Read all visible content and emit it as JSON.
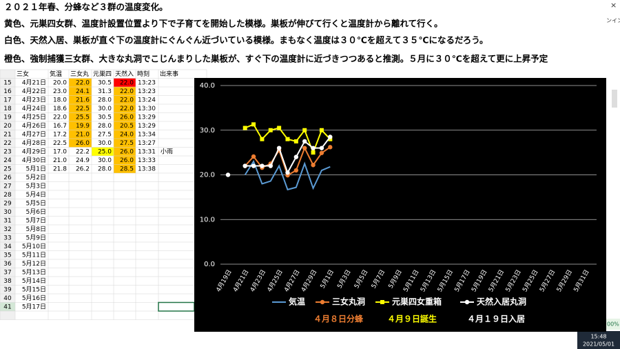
{
  "header": {
    "lines": [
      "２０２１年春、分蜂など３群の温度変化。",
      "黄色、元巣四女群、温度計設置位置より下で子育てを開始した模様。巣板が伸びて行くと温度計から離れて行く。",
      "白色、天然入居、巣板が直ぐ下の温度計にぐんぐん近づいている模様。まもなく温度は３０℃を超えて３５℃になるだろう。",
      "橙色、強制捕獲三女群、大きな丸洞でこじんまりした巣板が、すぐ下の温度計に近づきつつあると推測。５月に３０℃を超えて更に上昇予定"
    ]
  },
  "sheet": {
    "columns": [
      "三女",
      "気温",
      "三女丸",
      "元巣四",
      "天然入",
      "時刻",
      "出来事"
    ],
    "rows": [
      [
        "15",
        "4月21日",
        "20.0",
        "22.0",
        "30.5",
        "22.0",
        "13:23"
      ],
      [
        "16",
        "4月22日",
        "23.0",
        "24.1",
        "31.3",
        "22.0",
        "13:23"
      ],
      [
        "17",
        "4月23日",
        "18.0",
        "21.6",
        "28.0",
        "22.0",
        "13:24"
      ],
      [
        "18",
        "4月24日",
        "18.6",
        "22.5",
        "30.0",
        "22.0",
        "13:30"
      ],
      [
        "19",
        "4月25日",
        "22.0",
        "25.5",
        "30.5",
        "26.0",
        "13:29"
      ],
      [
        "20",
        "4月26日",
        "16.7",
        "19.9",
        "28.0",
        "20.5",
        "13:29"
      ],
      [
        "21",
        "4月27日",
        "17.2",
        "21.0",
        "27.5",
        "24.0",
        "13:34"
      ],
      [
        "22",
        "4月28日",
        "22.5",
        "26.0",
        "30.0",
        "27.5",
        "13:27"
      ],
      [
        "23",
        "4月29日",
        "17.0",
        "22.2",
        "25.0",
        "26.0",
        "13:31",
        "小雨"
      ],
      [
        "24",
        "4月30日",
        "21.0",
        "24.9",
        "30.0",
        "26.0",
        "13:33"
      ],
      [
        "25",
        "5月1日",
        "21.8",
        "26.2",
        "28.0",
        "28.5",
        "13:38"
      ],
      [
        "26",
        "5月2日"
      ],
      [
        "27",
        "5月3日"
      ],
      [
        "28",
        "5月4日"
      ],
      [
        "29",
        "5月5日"
      ],
      [
        "30",
        "5月6日"
      ],
      [
        "31",
        "5月7日"
      ],
      [
        "32",
        "5月8日"
      ],
      [
        "33",
        "5月9日"
      ],
      [
        "34",
        "5月10日"
      ],
      [
        "35",
        "5月11日"
      ],
      [
        "36",
        "5月12日"
      ],
      [
        "37",
        "5月13日"
      ],
      [
        "38",
        "5月14日"
      ],
      [
        "39",
        "5月15日"
      ],
      [
        "40",
        "5月16日"
      ],
      [
        "41",
        "5月17日"
      ]
    ]
  },
  "chart_data": {
    "type": "line",
    "categories": [
      "4月19日",
      null,
      "4月21日",
      null,
      "4月23日",
      null,
      "4月25日",
      null,
      "4月27日",
      null,
      "4月29日",
      null,
      "5月1日",
      null,
      "5月3日",
      null,
      "5月5日",
      null,
      "5月7日",
      null,
      "5月9日",
      null,
      "5月11日",
      null,
      "5月13日",
      null,
      "5月15日",
      null,
      "5月17日",
      null,
      "5月19日",
      null,
      "5月21日",
      null,
      "5月23日",
      null,
      "5月25日",
      null,
      "5月27日",
      null,
      "5月29日",
      null,
      "5月31日"
    ],
    "series": [
      {
        "name": "気温",
        "color": "#5b9bd5",
        "marker": "none",
        "values": [
          null,
          null,
          20.0,
          23.0,
          18.0,
          18.6,
          22.0,
          16.7,
          17.2,
          22.5,
          17.0,
          21.0,
          21.8,
          null,
          null,
          null,
          null,
          null,
          null,
          null,
          null,
          null,
          null,
          null,
          null,
          null,
          null,
          null,
          null,
          null,
          null,
          null,
          null,
          null,
          null,
          null,
          null,
          null,
          null,
          null,
          null,
          null,
          null
        ]
      },
      {
        "name": "三女丸洞",
        "color": "#ed7d31",
        "marker": "circle",
        "values": [
          null,
          null,
          22.0,
          24.1,
          21.6,
          22.5,
          25.5,
          19.9,
          21.0,
          26.0,
          22.2,
          24.9,
          26.2,
          null,
          null,
          null,
          null,
          null,
          null,
          null,
          null,
          null,
          null,
          null,
          null,
          null,
          null,
          null,
          null,
          null,
          null,
          null,
          null,
          null,
          null,
          null,
          null,
          null,
          null,
          null,
          null,
          null,
          null
        ]
      },
      {
        "name": "元巣四女重箱",
        "color": "#ffff00",
        "marker": "square",
        "values": [
          null,
          null,
          30.5,
          31.3,
          28.0,
          30.0,
          30.5,
          28.0,
          27.5,
          30.0,
          25.0,
          30.0,
          28.0,
          null,
          null,
          null,
          null,
          null,
          null,
          null,
          null,
          null,
          null,
          null,
          null,
          null,
          null,
          null,
          null,
          null,
          null,
          null,
          null,
          null,
          null,
          null,
          null,
          null,
          null,
          null,
          null,
          null,
          null
        ]
      },
      {
        "name": "天然入居丸洞",
        "color": "#ffffff",
        "marker": "circle",
        "values": [
          20.0,
          null,
          22.0,
          22.0,
          22.0,
          22.0,
          26.0,
          20.5,
          24.0,
          27.5,
          26.0,
          26.0,
          28.5,
          null,
          null,
          null,
          null,
          null,
          null,
          null,
          null,
          null,
          null,
          null,
          null,
          null,
          null,
          null,
          null,
          null,
          null,
          null,
          null,
          null,
          null,
          null,
          null,
          null,
          null,
          null,
          null,
          null,
          null
        ]
      }
    ],
    "ylim": [
      0,
      40
    ],
    "yticks": [
      {
        "value": 0,
        "label": "0.0"
      },
      {
        "value": 10,
        "label": "10.0"
      },
      {
        "value": 20,
        "label": "20.0"
      },
      {
        "value": 30,
        "label": "30.0"
      },
      {
        "value": 40,
        "label": "40.0"
      }
    ],
    "grid": true,
    "legend": "bottom",
    "annotations": [
      {
        "text": "４月８日分蜂",
        "color": "#ed7d31"
      },
      {
        "text": "４月９日誕生",
        "color": "#ffff00"
      },
      {
        "text": "４月１９日入居",
        "color": "#ffffff"
      }
    ]
  },
  "taskbar": {
    "time": "15:48",
    "date": "2021/05/01"
  },
  "side": {
    "ribbon": "ンイン",
    "zoom": "00%"
  }
}
